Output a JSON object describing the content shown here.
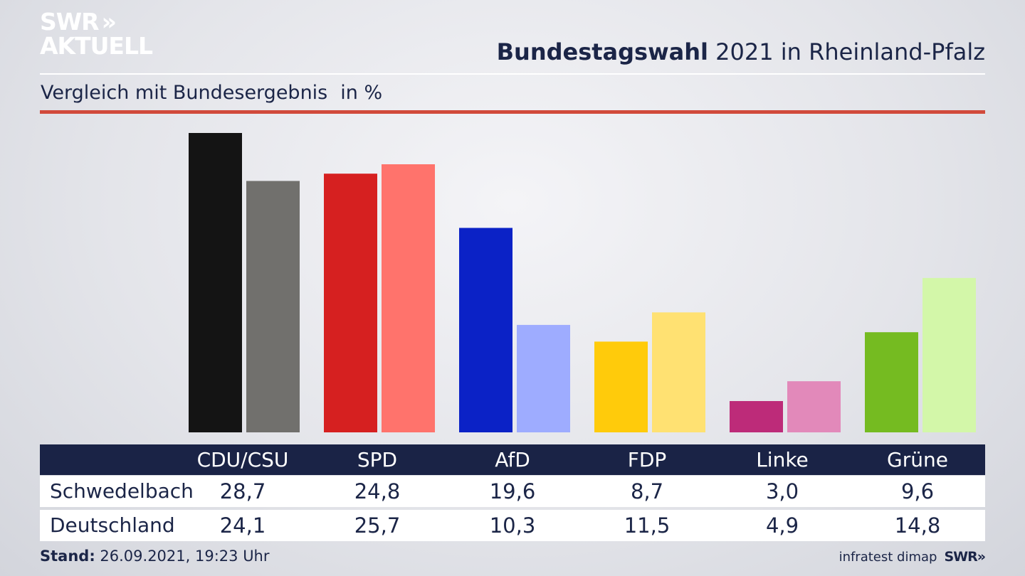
{
  "logo": {
    "line1": "SWR",
    "arrows": "»",
    "line2": "AKTUELL"
  },
  "header": {
    "title_bold": "Bundestagswahl",
    "title_rest": "2021 in Rheinland-Pfalz"
  },
  "subtitle": {
    "text": "Vergleich mit Bundesergebnis",
    "unit": "in %"
  },
  "table": {
    "parties": [
      "CDU/CSU",
      "SPD",
      "AfD",
      "FDP",
      "Linke",
      "Grüne"
    ],
    "rows": [
      {
        "label": "Schwedelbach",
        "values": [
          "28,7",
          "24,8",
          "19,6",
          "8,7",
          "3,0",
          "9,6"
        ]
      },
      {
        "label": "Deutschland",
        "values": [
          "24,1",
          "25,7",
          "10,3",
          "11,5",
          "4,9",
          "14,8"
        ]
      }
    ]
  },
  "footer": {
    "stand_label": "Stand:",
    "stand_value": "26.09.2021, 19:23 Uhr",
    "source": "infratest dimap",
    "brand": "SWR»"
  },
  "chart_data": {
    "type": "bar",
    "title": "Bundestagswahl 2021 in Rheinland-Pfalz",
    "subtitle": "Vergleich mit Bundesergebnis",
    "ylabel": "in %",
    "categories": [
      "CDU/CSU",
      "SPD",
      "AfD",
      "FDP",
      "Linke",
      "Grüne"
    ],
    "series": [
      {
        "name": "Schwedelbach",
        "values": [
          28.7,
          24.8,
          19.6,
          8.7,
          3.0,
          9.6
        ],
        "colors": [
          "#141414",
          "#d62020",
          "#0b22c6",
          "#ffcb0b",
          "#bd2b79",
          "#75bb21"
        ]
      },
      {
        "name": "Deutschland",
        "values": [
          24.1,
          25.7,
          10.3,
          11.5,
          4.9,
          14.8
        ],
        "colors": [
          "#71706d",
          "#ff736c",
          "#9eacff",
          "#ffe172",
          "#e289ba",
          "#d3f7a9"
        ]
      }
    ],
    "ylim": [
      0,
      28.7
    ]
  }
}
